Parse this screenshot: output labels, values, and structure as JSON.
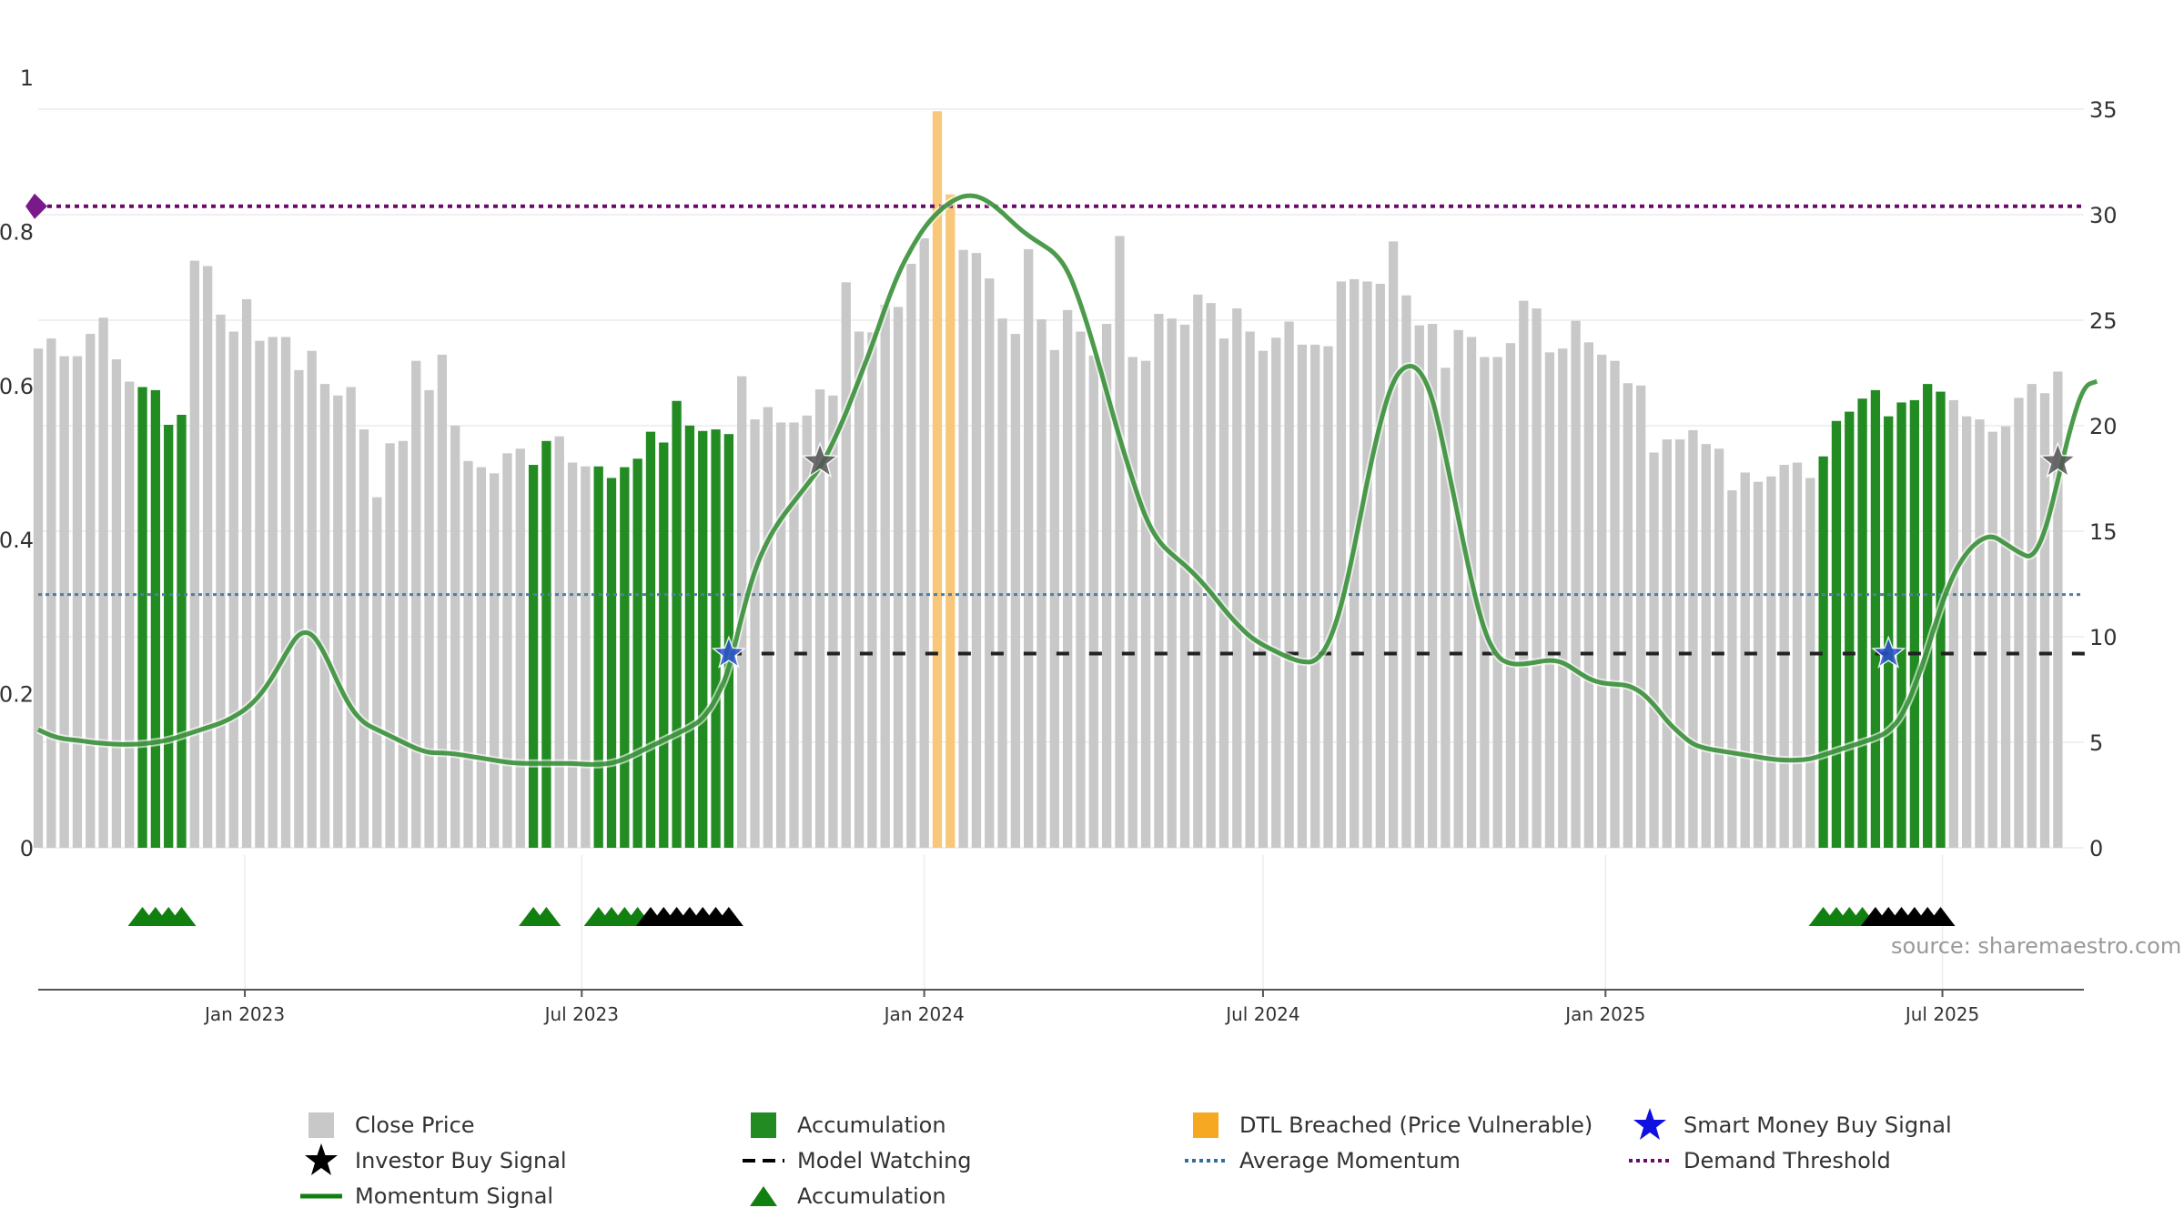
{
  "watermark": "source: sharemaestro.com",
  "colors": {
    "close_bar": "#c8c8c8",
    "accumulation_bar": "#228b22",
    "dtl_bar": "#f9c77a",
    "momentum": "#2d8a2d",
    "momentum_strong": "#118011",
    "average": "#4f7fa0",
    "demand": "#6a0a6a",
    "watching": "#222222",
    "triangle_acc": "#118011",
    "triangle_watch": "#000000",
    "investor_star": "#555555",
    "smart_star": "#2a4fd0"
  },
  "legend": [
    {
      "label": "Close Price",
      "symbol": "square-grey"
    },
    {
      "label": "Accumulation",
      "symbol": "square-green"
    },
    {
      "label": "DTL Breached (Price Vulnerable)",
      "symbol": "square-orange"
    },
    {
      "label": "Smart Money Buy Signal",
      "symbol": "star-blue"
    },
    {
      "label": "Investor Buy Signal",
      "symbol": "star-black"
    },
    {
      "label": "Model Watching",
      "symbol": "dash-black"
    },
    {
      "label": "Average Momentum",
      "symbol": "dot-blue"
    },
    {
      "label": "Demand Threshold",
      "symbol": "dot-purple"
    },
    {
      "label": "Momentum Signal",
      "symbol": "line-green"
    },
    {
      "label": "Accumulation",
      "symbol": "triangle-green"
    }
  ],
  "chart_data": {
    "type": "bar",
    "y_left": {
      "ticks": [
        "0",
        "0.2",
        "0.4",
        "0.6",
        "0.8",
        "1"
      ],
      "range": [
        0,
        1
      ]
    },
    "y_right": {
      "ticks": [
        "0",
        "5",
        "10",
        "15",
        "20",
        "25",
        "30",
        "35"
      ],
      "range": [
        0,
        35
      ]
    },
    "x_ticks": [
      {
        "label": "Jan 2023",
        "date": "2023-01-01"
      },
      {
        "label": "Jul 2023",
        "date": "2023-07-01"
      },
      {
        "label": "Jan 2024",
        "date": "2024-01-01"
      },
      {
        "label": "Jul 2024",
        "date": "2024-07-01"
      },
      {
        "label": "Jan 2025",
        "date": "2025-01-01"
      },
      {
        "label": "Jul 2025",
        "date": "2025-07-01"
      }
    ],
    "x_range": [
      "2022-09-12",
      "2025-09-15"
    ],
    "weeks_start": "2022-09-12",
    "weeks_step_days": 7,
    "close_prices": [
      0.648,
      0.661,
      0.638,
      0.638,
      0.667,
      0.688,
      0.634,
      0.605,
      0.598,
      0.594,
      0.549,
      0.562,
      0.762,
      0.755,
      0.692,
      0.67,
      0.712,
      0.658,
      0.663,
      0.663,
      0.62,
      0.645,
      0.602,
      0.587,
      0.598,
      0.543,
      0.455,
      0.525,
      0.528,
      0.632,
      0.594,
      0.64,
      0.548,
      0.502,
      0.494,
      0.486,
      0.512,
      0.518,
      0.497,
      0.528,
      0.534,
      0.5,
      0.495,
      0.495,
      0.48,
      0.494,
      0.505,
      0.54,
      0.526,
      0.58,
      0.548,
      0.541,
      0.543,
      0.537,
      0.612,
      0.556,
      0.572,
      0.552,
      0.552,
      0.561,
      0.595,
      0.587,
      0.734,
      0.67,
      0.669,
      0.705,
      0.702,
      0.758,
      0.791,
      0.956,
      0.848,
      0.776,
      0.772,
      0.739,
      0.687,
      0.667,
      0.777,
      0.686,
      0.646,
      0.698,
      0.67,
      0.639,
      0.68,
      0.794,
      0.637,
      0.632,
      0.693,
      0.687,
      0.679,
      0.718,
      0.707,
      0.661,
      0.7,
      0.67,
      0.645,
      0.662,
      0.683,
      0.653,
      0.653,
      0.651,
      0.735,
      0.738,
      0.735,
      0.732,
      0.787,
      0.717,
      0.678,
      0.68,
      0.623,
      0.672,
      0.663,
      0.637,
      0.637,
      0.655,
      0.71,
      0.7,
      0.643,
      0.648,
      0.684,
      0.656,
      0.64,
      0.632,
      0.603,
      0.6,
      0.513,
      0.53,
      0.53,
      0.542,
      0.524,
      0.518,
      0.464,
      0.487,
      0.475,
      0.482,
      0.497,
      0.5,
      0.48,
      0.508,
      0.554,
      0.566,
      0.583,
      0.594,
      0.56,
      0.578,
      0.581,
      0.602,
      0.592,
      0.581,
      0.56,
      0.556,
      0.54,
      0.547,
      0.584,
      0.602,
      0.59,
      0.618
    ],
    "accumulation_weeks": [
      8,
      9,
      10,
      11,
      38,
      39,
      43,
      44,
      45,
      46,
      47,
      48,
      49,
      50,
      51,
      52,
      53,
      137,
      138,
      139,
      140,
      141,
      142,
      143,
      144,
      145,
      146
    ],
    "dtl_weeks": [
      69,
      70
    ],
    "momentum_signal": [
      [
        0,
        5.6
      ],
      [
        1,
        5.3
      ],
      [
        2,
        5.15
      ],
      [
        3,
        5.1
      ],
      [
        4,
        5.0
      ],
      [
        5,
        4.95
      ],
      [
        6,
        4.9
      ],
      [
        7,
        4.9
      ],
      [
        8,
        4.92
      ],
      [
        9,
        5.0
      ],
      [
        10,
        5.1
      ],
      [
        11,
        5.3
      ],
      [
        12,
        5.5
      ],
      [
        13,
        5.7
      ],
      [
        14,
        5.9
      ],
      [
        15,
        6.2
      ],
      [
        16,
        6.6
      ],
      [
        17,
        7.2
      ],
      [
        18,
        8.1
      ],
      [
        19,
        9.2
      ],
      [
        20,
        10.2
      ],
      [
        21,
        10.2
      ],
      [
        22,
        9.2
      ],
      [
        23,
        7.8
      ],
      [
        24,
        6.6
      ],
      [
        25,
        5.9
      ],
      [
        26,
        5.6
      ],
      [
        27,
        5.3
      ],
      [
        28,
        5.0
      ],
      [
        29,
        4.7
      ],
      [
        30,
        4.5
      ],
      [
        31,
        4.5
      ],
      [
        32,
        4.45
      ],
      [
        33,
        4.35
      ],
      [
        34,
        4.25
      ],
      [
        35,
        4.15
      ],
      [
        36,
        4.05
      ],
      [
        37,
        4.0
      ],
      [
        38,
        4.0
      ],
      [
        39,
        4.0
      ],
      [
        40,
        4.0
      ],
      [
        41,
        4.0
      ],
      [
        42,
        3.95
      ],
      [
        43,
        3.95
      ],
      [
        44,
        4.0
      ],
      [
        45,
        4.2
      ],
      [
        46,
        4.5
      ],
      [
        47,
        4.8
      ],
      [
        48,
        5.1
      ],
      [
        49,
        5.4
      ],
      [
        50,
        5.7
      ],
      [
        51,
        6.1
      ],
      [
        52,
        7.0
      ],
      [
        53,
        8.4
      ],
      [
        54,
        11.0
      ],
      [
        55,
        13.2
      ],
      [
        56,
        14.6
      ],
      [
        57,
        15.6
      ],
      [
        58,
        16.4
      ],
      [
        59,
        17.2
      ],
      [
        60,
        18.0
      ],
      [
        61,
        19.2
      ],
      [
        62,
        20.6
      ],
      [
        63,
        22.2
      ],
      [
        64,
        23.8
      ],
      [
        65,
        25.6
      ],
      [
        66,
        27.2
      ],
      [
        67,
        28.4
      ],
      [
        68,
        29.4
      ],
      [
        69,
        30.1
      ],
      [
        70,
        30.6
      ],
      [
        71,
        30.9
      ],
      [
        72,
        30.9
      ],
      [
        73,
        30.6
      ],
      [
        74,
        30.1
      ],
      [
        75,
        29.5
      ],
      [
        76,
        29.0
      ],
      [
        77,
        28.6
      ],
      [
        78,
        28.2
      ],
      [
        79,
        27.4
      ],
      [
        80,
        25.8
      ],
      [
        81,
        23.8
      ],
      [
        82,
        21.6
      ],
      [
        83,
        19.4
      ],
      [
        84,
        17.4
      ],
      [
        85,
        15.6
      ],
      [
        86,
        14.5
      ],
      [
        87,
        13.9
      ],
      [
        88,
        13.4
      ],
      [
        89,
        12.8
      ],
      [
        90,
        12.1
      ],
      [
        91,
        11.3
      ],
      [
        92,
        10.6
      ],
      [
        93,
        10.0
      ],
      [
        94,
        9.6
      ],
      [
        95,
        9.3
      ],
      [
        96,
        9.0
      ],
      [
        97,
        8.8
      ],
      [
        98,
        8.8
      ],
      [
        99,
        9.6
      ],
      [
        100,
        11.4
      ],
      [
        101,
        14.2
      ],
      [
        102,
        17.4
      ],
      [
        103,
        20.2
      ],
      [
        104,
        22.2
      ],
      [
        105,
        22.9
      ],
      [
        106,
        22.7
      ],
      [
        107,
        21.4
      ],
      [
        108,
        18.6
      ],
      [
        109,
        15.6
      ],
      [
        110,
        12.6
      ],
      [
        111,
        10.2
      ],
      [
        112,
        9.0
      ],
      [
        113,
        8.7
      ],
      [
        114,
        8.7
      ],
      [
        115,
        8.8
      ],
      [
        116,
        8.9
      ],
      [
        117,
        8.8
      ],
      [
        118,
        8.4
      ],
      [
        119,
        8.0
      ],
      [
        120,
        7.8
      ],
      [
        121,
        7.75
      ],
      [
        122,
        7.7
      ],
      [
        123,
        7.4
      ],
      [
        124,
        6.8
      ],
      [
        125,
        6.0
      ],
      [
        126,
        5.4
      ],
      [
        127,
        4.9
      ],
      [
        128,
        4.7
      ],
      [
        129,
        4.6
      ],
      [
        130,
        4.5
      ],
      [
        131,
        4.4
      ],
      [
        132,
        4.3
      ],
      [
        133,
        4.2
      ],
      [
        134,
        4.15
      ],
      [
        135,
        4.15
      ],
      [
        136,
        4.2
      ],
      [
        137,
        4.4
      ],
      [
        138,
        4.6
      ],
      [
        139,
        4.8
      ],
      [
        140,
        5.0
      ],
      [
        141,
        5.2
      ],
      [
        142,
        5.5
      ],
      [
        143,
        6.2
      ],
      [
        144,
        7.6
      ],
      [
        145,
        9.4
      ],
      [
        146,
        11.4
      ],
      [
        147,
        13.0
      ],
      [
        148,
        14.0
      ],
      [
        149,
        14.6
      ],
      [
        150,
        14.8
      ],
      [
        151,
        14.4
      ],
      [
        152,
        14.0
      ],
      [
        153,
        13.7
      ],
      [
        154,
        14.9
      ],
      [
        155,
        17.4
      ],
      [
        156,
        20.0
      ],
      [
        157,
        21.9
      ],
      [
        158,
        22.1
      ]
    ],
    "average_momentum": 12.0,
    "demand_threshold": 30.4,
    "model_watching": {
      "from_week": 53,
      "to_week": 158,
      "value": 9.2
    },
    "smart_money_buy_signals": [
      {
        "week": 53,
        "value": 9.2
      },
      {
        "week": 142,
        "value": 9.2
      }
    ],
    "investor_buy_signals": [
      {
        "week": 60,
        "value": 18.3
      },
      {
        "week": 155,
        "value": 18.3
      }
    ],
    "accumulation_triangles": [
      8,
      9,
      10,
      11,
      38,
      39,
      43,
      44,
      45,
      46,
      137,
      138,
      139,
      140
    ],
    "watching_triangles": [
      47,
      48,
      49,
      50,
      51,
      52,
      53,
      141,
      142,
      143,
      144,
      145,
      146
    ]
  }
}
